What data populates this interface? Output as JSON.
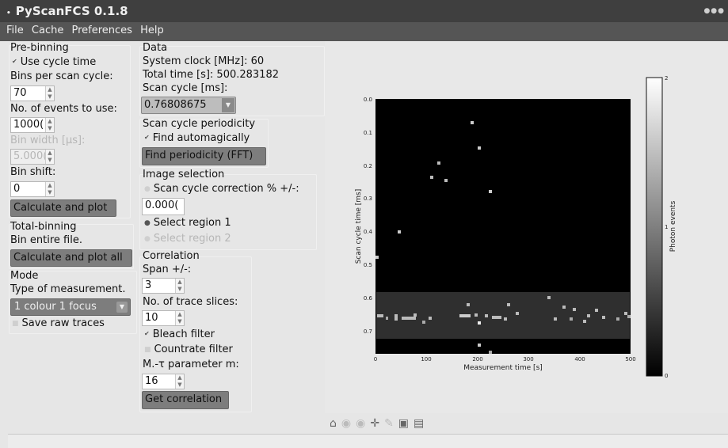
{
  "window": {
    "title": "PyScanFCS 0.1.8",
    "controls": "●●●"
  },
  "menu": [
    "File",
    "Cache",
    "Preferences",
    "Help"
  ],
  "prebinning": {
    "heading": "Pre-binning",
    "use_cycle_time": "Use cycle time",
    "bins_label": "Bins per scan cycle:",
    "bins_value": "70",
    "events_label": "No. of events to use:",
    "events_value": "1000(",
    "bin_width_label": "Bin width [µs]:",
    "bin_width_value": "5.000(",
    "bin_shift_label": "Bin shift:",
    "bin_shift_value": "0",
    "calc_button": "Calculate and plot"
  },
  "totalbinning": {
    "heading": "Total-binning",
    "bin_entire": "Bin entire file.",
    "calc_all_button": "Calculate and plot all"
  },
  "mode": {
    "heading": "Mode",
    "type_label": "Type of measurement.",
    "type_value": "1 colour 1 focus",
    "save_raw": "Save raw traces"
  },
  "data": {
    "heading": "Data",
    "system_clock": "System clock [MHz]: 60",
    "total_time": "Total time [s]: 500.283182",
    "scan_cycle_label": "Scan cycle [ms]:",
    "scan_cycle_value": "0.76808675"
  },
  "periodicity": {
    "heading": "Scan cycle periodicity",
    "find_auto": "Find automagically",
    "find_button": "Find periodicity (FFT)"
  },
  "imagesel": {
    "heading": "Image selection",
    "correction_label": "Scan cycle correction % +/-:",
    "correction_value": "0.000(",
    "region1": "Select region 1",
    "region2": "Select region 2"
  },
  "correlation": {
    "heading": "Correlation",
    "span_label": "Span +/-:",
    "span_value": "3",
    "slices_label": "No. of trace slices:",
    "slices_value": "10",
    "bleach": "Bleach filter",
    "countrate": "Countrate filter",
    "param_label": "M.-τ parameter m:",
    "param_value": "16",
    "get_button": "Get correlation"
  },
  "plot": {
    "xlabel": "Measurement time [s]",
    "ylabel": "Scan cycle time [ms]",
    "cbar_label": "Photon events",
    "x_ticks": [
      "0",
      "100",
      "200",
      "300",
      "400",
      "500"
    ],
    "y_ticks": [
      "0.0",
      "0.1",
      "0.2",
      "0.3",
      "0.4",
      "0.5",
      "0.6",
      "0.7"
    ],
    "cbar_ticks": [
      "2",
      "1",
      "0"
    ]
  },
  "toolbar": {
    "icons": [
      "home-icon",
      "back-icon",
      "forward-icon",
      "pan-icon",
      "zoom-icon",
      "subplots-icon",
      "save-icon"
    ]
  }
}
